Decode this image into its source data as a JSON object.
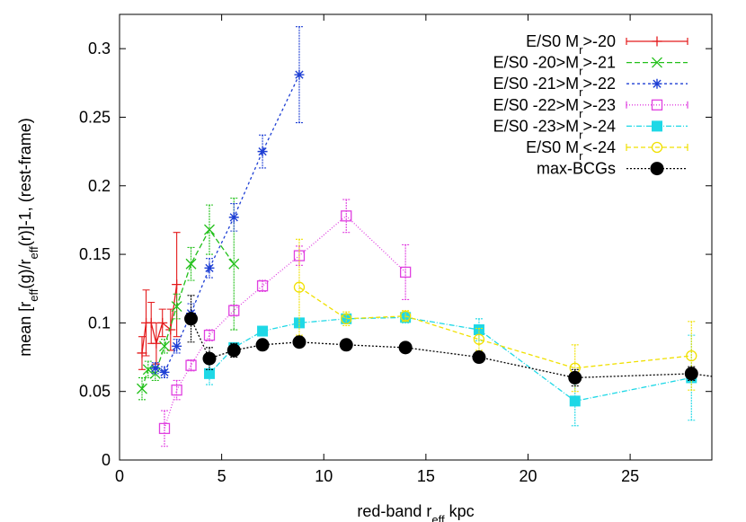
{
  "chart_data": {
    "type": "scatter",
    "xlabel_main": "red-band r",
    "xlabel_sub": "eff",
    "xlabel_tail": " kpc",
    "ylabel_parts": [
      {
        "t": "mean [r",
        "sub": false
      },
      {
        "t": "eff",
        "sub": true
      },
      {
        "t": "(g)/r",
        "sub": false
      },
      {
        "t": "eff",
        "sub": true
      },
      {
        "t": "(r)]-1, (rest-frame)",
        "sub": false
      }
    ],
    "xlim": [
      0,
      29
    ],
    "ylim": [
      0,
      0.325
    ],
    "xticks": [
      0,
      5,
      10,
      15,
      20,
      25
    ],
    "yticks": [
      0,
      0.05,
      0.1,
      0.15,
      0.2,
      0.25,
      0.3
    ],
    "ytick_labels": [
      "0",
      "0.05",
      "0.1",
      "0.15",
      "0.2",
      "0.25",
      "0.3"
    ],
    "grid": false,
    "legend_position": "top-right",
    "series": [
      {
        "legend": [
          {
            "t": "E/S0 M",
            "sub": false
          },
          {
            "t": "r",
            "sub": true
          },
          {
            "t": ">-20",
            "sub": false
          }
        ],
        "color": "#e41a1c",
        "marker": "plus",
        "dash": "",
        "points": [
          [
            1.1,
            0.078,
            0.012
          ],
          [
            1.3,
            0.1,
            0.024
          ],
          [
            1.55,
            0.1,
            0.015
          ],
          [
            1.8,
            0.085,
            0.015
          ],
          [
            2.1,
            0.1,
            0.01
          ],
          [
            2.5,
            0.095,
            0.015
          ],
          [
            2.8,
            0.128,
            0.038
          ]
        ]
      },
      {
        "legend": [
          {
            "t": "E/S0 -20>M",
            "sub": false
          },
          {
            "t": "r",
            "sub": true
          },
          {
            "t": ">-21",
            "sub": false
          }
        ],
        "color": "#22c01a",
        "marker": "x",
        "dash": "6,3",
        "points": [
          [
            1.1,
            0.052,
            0.008
          ],
          [
            1.4,
            0.066,
            0.006
          ],
          [
            1.75,
            0.063,
            0.005
          ],
          [
            2.2,
            0.083,
            0.005
          ],
          [
            2.8,
            0.112,
            0.009
          ],
          [
            3.5,
            0.143,
            0.012
          ],
          [
            4.4,
            0.168,
            0.018
          ],
          [
            5.6,
            0.143,
            0.048
          ]
        ]
      },
      {
        "legend": [
          {
            "t": "E/S0 -21>M",
            "sub": false
          },
          {
            "t": "r",
            "sub": true
          },
          {
            "t": ">-22",
            "sub": false
          }
        ],
        "color": "#1e3fd4",
        "marker": "star",
        "dash": "3,3",
        "points": [
          [
            1.75,
            0.067,
            0.004
          ],
          [
            2.2,
            0.064,
            0.004
          ],
          [
            2.8,
            0.083,
            0.005
          ],
          [
            3.5,
            0.107,
            0.007
          ],
          [
            4.4,
            0.14,
            0.007
          ],
          [
            5.6,
            0.177,
            0.01
          ],
          [
            7.0,
            0.225,
            0.012
          ],
          [
            8.8,
            0.281,
            0.035
          ]
        ]
      },
      {
        "legend": [
          {
            "t": "E/S0 -22>M",
            "sub": false
          },
          {
            "t": "r",
            "sub": true
          },
          {
            "t": ">-23",
            "sub": false
          }
        ],
        "color": "#e040e0",
        "marker": "square-open",
        "dash": "1,2",
        "points": [
          [
            2.2,
            0.023,
            0.013
          ],
          [
            2.8,
            0.051,
            0.007
          ],
          [
            3.5,
            0.069,
            0.004
          ],
          [
            4.4,
            0.091,
            0.004
          ],
          [
            5.6,
            0.109,
            0.004
          ],
          [
            7.0,
            0.127,
            0.004
          ],
          [
            8.8,
            0.149,
            0.007
          ],
          [
            11.1,
            0.178,
            0.012
          ],
          [
            14.0,
            0.137,
            0.02
          ]
        ]
      },
      {
        "legend": [
          {
            "t": "E/S0 -23>M",
            "sub": false
          },
          {
            "t": "r",
            "sub": true
          },
          {
            "t": ">-24",
            "sub": false
          }
        ],
        "color": "#1ed8e6",
        "marker": "square-filled",
        "dash": "6,2,1,2",
        "points": [
          [
            4.4,
            0.063,
            0.008
          ],
          [
            5.6,
            0.082,
            0.003
          ],
          [
            7.0,
            0.094,
            0.002
          ],
          [
            8.8,
            0.1,
            0.002
          ],
          [
            11.1,
            0.103,
            0.003
          ],
          [
            14.0,
            0.104,
            0.004
          ],
          [
            17.6,
            0.095,
            0.008
          ],
          [
            22.3,
            0.043,
            0.018
          ],
          [
            28.0,
            0.06,
            0.031
          ]
        ]
      },
      {
        "legend": [
          {
            "t": "E/S0 M",
            "sub": false
          },
          {
            "t": "r",
            "sub": true
          },
          {
            "t": "<-24",
            "sub": false
          }
        ],
        "color": "#f0e000",
        "marker": "circle-open",
        "dash": "5,3",
        "points": [
          [
            8.8,
            0.126,
            0.035
          ],
          [
            11.1,
            0.103,
            0.005
          ],
          [
            14.0,
            0.105,
            0.004
          ],
          [
            17.6,
            0.088,
            0.008
          ],
          [
            22.3,
            0.067,
            0.017
          ],
          [
            28.0,
            0.076,
            0.025
          ]
        ]
      },
      {
        "legend": [
          {
            "t": "max-BCGs",
            "sub": false
          }
        ],
        "color": "#000000",
        "marker": "circle-filled",
        "dash": "2,2",
        "points": [
          [
            3.5,
            0.103,
            0.017
          ],
          [
            4.4,
            0.074,
            0.008
          ],
          [
            5.6,
            0.08,
            0.005
          ],
          [
            7.0,
            0.084,
            0.002
          ],
          [
            8.8,
            0.086,
            0.002
          ],
          [
            11.1,
            0.084,
            0.002
          ],
          [
            14.0,
            0.082,
            0.002
          ],
          [
            17.6,
            0.075,
            0.003
          ],
          [
            22.3,
            0.06,
            0.006
          ],
          [
            28.0,
            0.063,
            0.005
          ],
          [
            29.0,
            0.061,
            0.0
          ]
        ]
      }
    ]
  }
}
